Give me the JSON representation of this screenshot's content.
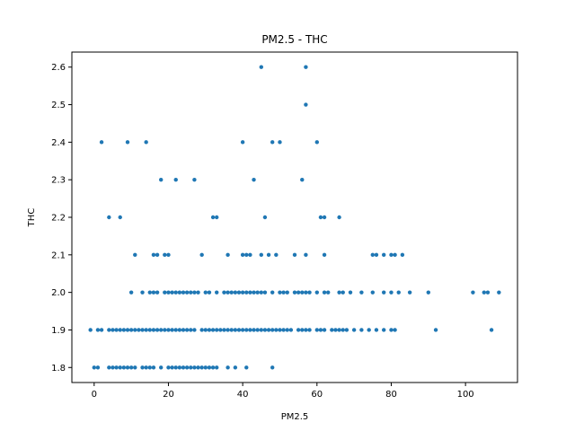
{
  "chart_data": {
    "type": "scatter",
    "title": "PM2.5 - THC",
    "xlabel": "PM2.5",
    "ylabel": "THC",
    "xlim": [
      -6,
      114
    ],
    "ylim": [
      1.76,
      2.64
    ],
    "xticks": [
      0,
      20,
      40,
      60,
      80,
      100
    ],
    "xtick_labels": [
      "0",
      "20",
      "40",
      "60",
      "80",
      "100"
    ],
    "yticks": [
      1.8,
      1.9,
      2.0,
      2.1,
      2.2,
      2.3,
      2.4,
      2.5,
      2.6
    ],
    "ytick_labels": [
      "1.8",
      "1.9",
      "2.0",
      "2.1",
      "2.2",
      "2.3",
      "2.4",
      "2.5",
      "2.6"
    ],
    "grid": false,
    "marker_color": "#1f77b4",
    "series": [
      {
        "points": [
          [
            45,
            2.6
          ],
          [
            57,
            2.6
          ],
          [
            57,
            2.5
          ],
          [
            2,
            2.4
          ],
          [
            9,
            2.4
          ],
          [
            14,
            2.4
          ],
          [
            40,
            2.4
          ],
          [
            48,
            2.4
          ],
          [
            50,
            2.4
          ],
          [
            60,
            2.4
          ],
          [
            18,
            2.3
          ],
          [
            22,
            2.3
          ],
          [
            27,
            2.3
          ],
          [
            43,
            2.3
          ],
          [
            56,
            2.3
          ],
          [
            4,
            2.2
          ],
          [
            7,
            2.2
          ],
          [
            32,
            2.2
          ],
          [
            33,
            2.2
          ],
          [
            46,
            2.2
          ],
          [
            61,
            2.2
          ],
          [
            62,
            2.2
          ],
          [
            66,
            2.2
          ],
          [
            11,
            2.1
          ],
          [
            16,
            2.1
          ],
          [
            17,
            2.1
          ],
          [
            19,
            2.1
          ],
          [
            20,
            2.1
          ],
          [
            29,
            2.1
          ],
          [
            36,
            2.1
          ],
          [
            40,
            2.1
          ],
          [
            41,
            2.1
          ],
          [
            42,
            2.1
          ],
          [
            45,
            2.1
          ],
          [
            47,
            2.1
          ],
          [
            49,
            2.1
          ],
          [
            54,
            2.1
          ],
          [
            57,
            2.1
          ],
          [
            62,
            2.1
          ],
          [
            75,
            2.1
          ],
          [
            76,
            2.1
          ],
          [
            78,
            2.1
          ],
          [
            80,
            2.1
          ],
          [
            81,
            2.1
          ],
          [
            83,
            2.1
          ],
          [
            10,
            2.0
          ],
          [
            13,
            2.0
          ],
          [
            15,
            2.0
          ],
          [
            16,
            2.0
          ],
          [
            17,
            2.0
          ],
          [
            19,
            2.0
          ],
          [
            20,
            2.0
          ],
          [
            21,
            2.0
          ],
          [
            22,
            2.0
          ],
          [
            23,
            2.0
          ],
          [
            24,
            2.0
          ],
          [
            25,
            2.0
          ],
          [
            26,
            2.0
          ],
          [
            27,
            2.0
          ],
          [
            28,
            2.0
          ],
          [
            30,
            2.0
          ],
          [
            31,
            2.0
          ],
          [
            33,
            2.0
          ],
          [
            35,
            2.0
          ],
          [
            36,
            2.0
          ],
          [
            37,
            2.0
          ],
          [
            38,
            2.0
          ],
          [
            39,
            2.0
          ],
          [
            40,
            2.0
          ],
          [
            41,
            2.0
          ],
          [
            42,
            2.0
          ],
          [
            43,
            2.0
          ],
          [
            44,
            2.0
          ],
          [
            45,
            2.0
          ],
          [
            46,
            2.0
          ],
          [
            48,
            2.0
          ],
          [
            50,
            2.0
          ],
          [
            51,
            2.0
          ],
          [
            52,
            2.0
          ],
          [
            54,
            2.0
          ],
          [
            55,
            2.0
          ],
          [
            56,
            2.0
          ],
          [
            57,
            2.0
          ],
          [
            58,
            2.0
          ],
          [
            60,
            2.0
          ],
          [
            62,
            2.0
          ],
          [
            63,
            2.0
          ],
          [
            66,
            2.0
          ],
          [
            67,
            2.0
          ],
          [
            69,
            2.0
          ],
          [
            72,
            2.0
          ],
          [
            75,
            2.0
          ],
          [
            78,
            2.0
          ],
          [
            80,
            2.0
          ],
          [
            82,
            2.0
          ],
          [
            85,
            2.0
          ],
          [
            90,
            2.0
          ],
          [
            102,
            2.0
          ],
          [
            105,
            2.0
          ],
          [
            106,
            2.0
          ],
          [
            109,
            2.0
          ],
          [
            -1,
            1.9
          ],
          [
            1,
            1.9
          ],
          [
            2,
            1.9
          ],
          [
            4,
            1.9
          ],
          [
            5,
            1.9
          ],
          [
            6,
            1.9
          ],
          [
            7,
            1.9
          ],
          [
            8,
            1.9
          ],
          [
            9,
            1.9
          ],
          [
            10,
            1.9
          ],
          [
            11,
            1.9
          ],
          [
            12,
            1.9
          ],
          [
            13,
            1.9
          ],
          [
            14,
            1.9
          ],
          [
            15,
            1.9
          ],
          [
            16,
            1.9
          ],
          [
            17,
            1.9
          ],
          [
            18,
            1.9
          ],
          [
            19,
            1.9
          ],
          [
            20,
            1.9
          ],
          [
            21,
            1.9
          ],
          [
            22,
            1.9
          ],
          [
            23,
            1.9
          ],
          [
            24,
            1.9
          ],
          [
            25,
            1.9
          ],
          [
            26,
            1.9
          ],
          [
            27,
            1.9
          ],
          [
            29,
            1.9
          ],
          [
            30,
            1.9
          ],
          [
            31,
            1.9
          ],
          [
            32,
            1.9
          ],
          [
            33,
            1.9
          ],
          [
            34,
            1.9
          ],
          [
            35,
            1.9
          ],
          [
            36,
            1.9
          ],
          [
            37,
            1.9
          ],
          [
            38,
            1.9
          ],
          [
            39,
            1.9
          ],
          [
            40,
            1.9
          ],
          [
            41,
            1.9
          ],
          [
            42,
            1.9
          ],
          [
            43,
            1.9
          ],
          [
            44,
            1.9
          ],
          [
            45,
            1.9
          ],
          [
            46,
            1.9
          ],
          [
            47,
            1.9
          ],
          [
            48,
            1.9
          ],
          [
            49,
            1.9
          ],
          [
            50,
            1.9
          ],
          [
            51,
            1.9
          ],
          [
            52,
            1.9
          ],
          [
            53,
            1.9
          ],
          [
            55,
            1.9
          ],
          [
            56,
            1.9
          ],
          [
            57,
            1.9
          ],
          [
            58,
            1.9
          ],
          [
            60,
            1.9
          ],
          [
            61,
            1.9
          ],
          [
            62,
            1.9
          ],
          [
            64,
            1.9
          ],
          [
            65,
            1.9
          ],
          [
            66,
            1.9
          ],
          [
            67,
            1.9
          ],
          [
            68,
            1.9
          ],
          [
            70,
            1.9
          ],
          [
            72,
            1.9
          ],
          [
            74,
            1.9
          ],
          [
            76,
            1.9
          ],
          [
            78,
            1.9
          ],
          [
            80,
            1.9
          ],
          [
            81,
            1.9
          ],
          [
            92,
            1.9
          ],
          [
            107,
            1.9
          ],
          [
            0,
            1.8
          ],
          [
            1,
            1.8
          ],
          [
            4,
            1.8
          ],
          [
            5,
            1.8
          ],
          [
            6,
            1.8
          ],
          [
            7,
            1.8
          ],
          [
            8,
            1.8
          ],
          [
            9,
            1.8
          ],
          [
            10,
            1.8
          ],
          [
            11,
            1.8
          ],
          [
            13,
            1.8
          ],
          [
            14,
            1.8
          ],
          [
            15,
            1.8
          ],
          [
            16,
            1.8
          ],
          [
            18,
            1.8
          ],
          [
            20,
            1.8
          ],
          [
            21,
            1.8
          ],
          [
            22,
            1.8
          ],
          [
            23,
            1.8
          ],
          [
            24,
            1.8
          ],
          [
            25,
            1.8
          ],
          [
            26,
            1.8
          ],
          [
            27,
            1.8
          ],
          [
            28,
            1.8
          ],
          [
            29,
            1.8
          ],
          [
            30,
            1.8
          ],
          [
            31,
            1.8
          ],
          [
            32,
            1.8
          ],
          [
            33,
            1.8
          ],
          [
            36,
            1.8
          ],
          [
            38,
            1.8
          ],
          [
            41,
            1.8
          ],
          [
            48,
            1.8
          ]
        ]
      }
    ]
  }
}
